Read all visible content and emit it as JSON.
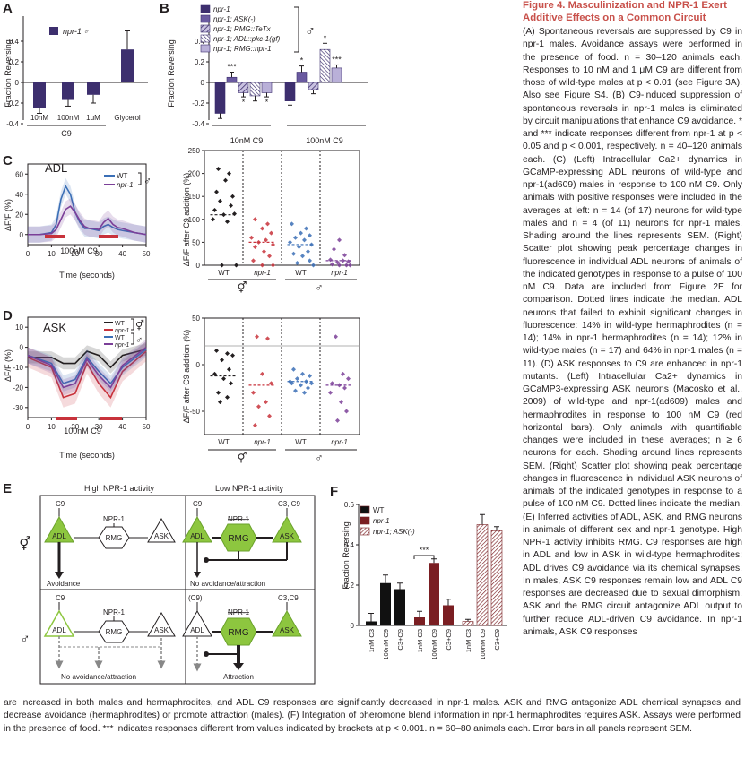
{
  "caption": {
    "title": "Figure 4. Masculinization and NPR-1 Exert Additive Effects on a Common Circuit",
    "side_text": "(A) Spontaneous reversals are suppressed by C9 in npr-1 males. Avoidance assays were performed in the presence of food. n = 30–120 animals each. Responses to 10 nM and 1 μM C9 are different from those of wild-type males at p < 0.01 (see Figure 3A). Also see Figure S4. (B) C9-induced suppression of spontaneous reversals in npr-1 males is eliminated by circuit manipulations that enhance C9 avoidance. * and *** indicate responses different from npr-1 at p < 0.05 and p < 0.001, respectively. n = 40–120 animals each. (C) (Left) Intracellular Ca2+ dynamics in GCaMP-expressing ADL neurons of wild-type and npr-1(ad609) males in response to 100 nM C9. Only animals with positive responses were included in the averages at left: n = 14 (of 17) neurons for wild-type males and n = 4 (of 11) neurons for npr-1 males. Shading around the lines represents SEM. (Right) Scatter plot showing peak percentage changes in fluorescence in individual ADL neurons of animals of the indicated genotypes in response to a pulse of 100 nM C9. Data are included from Figure 2E for comparison. Dotted lines indicate the median. ADL neurons that failed to exhibit significant changes in fluorescence: 14% in wild-type hermaphrodites (n = 14); 14% in npr-1 hermaphrodites (n = 14); 12% in wild-type males (n = 17) and 64% in npr-1 males (n = 11). (D) ASK responses to C9 are enhanced in npr-1 mutants. (Left) Intracellular Ca2+ dynamics in GCaMP3-expressing ASK neurons (Macosko et al., 2009) of wild-type and npr-1(ad609) males and hermaphrodites in response to 100 nM C9 (red horizontal bars). Only animals with quantifiable changes were included in these averages; n ≥ 6 neurons for each. Shading around lines represents SEM. (Right) Scatter plot showing peak percentage changes in fluorescence in individual ASK neurons of animals of the indicated genotypes in response to a pulse of 100 nM C9. Dotted lines indicate the median. (E) Inferred activities of ADL, ASK, and RMG neurons in animals of different sex and npr-1 genotype. High NPR-1 activity inhibits RMG. C9 responses are high in ADL and low in ASK in wild-type hermaphrodites; ADL drives C9 avoidance via its chemical synapses. In males, ASK C9 responses remain low and ADL C9 responses are decreased due to sexual dimorphism. ASK and the RMG circuit antagonize ADL output to further reduce ADL-driven C9 avoidance. In npr-1 animals, ASK C9 responses",
    "bottom_text": "are increased in both males and hermaphrodites, and ADL C9 responses are significantly decreased in npr-1 males. ASK and RMG antagonize ADL chemical synapses and decrease avoidance (hermaphrodites) or promote attraction (males). (F) Integration of pheromone blend information in npr-1 hermaphrodites requires ASK. Assays were performed in the presence of food. *** indicates responses different from values indicated by brackets at p < 0.001. n = 60–80 animals each. Error bars in all panels represent SEM."
  },
  "panels": {
    "A": {
      "label": "A",
      "ylabel": "Fraction Reversing",
      "legend": "npr-1 ♂",
      "yticks": [
        "0.4",
        "0.2",
        "0",
        "-0.2",
        "-0.4"
      ],
      "categories": [
        "10nM",
        "100nM",
        "1μM",
        "Glycerol"
      ],
      "group": "C9"
    },
    "B": {
      "label": "B",
      "ylabel": "Fraction Reversing",
      "legend": [
        "npr-1",
        "npr-1; ASK(-)",
        "npr-1; RMG::TeTx",
        "npr-1; ADL::pkc-1(gf)",
        "npr-1; RMG::npr-1"
      ],
      "sex": "♂",
      "yticks": [
        "0.4",
        "0.2",
        "0",
        "-0.2",
        "-0.4"
      ],
      "groups": [
        "10nM C9",
        "100nM C9"
      ],
      "stars": [
        "***",
        "*",
        "*",
        "*",
        "*",
        "***"
      ]
    },
    "C": {
      "label": "C",
      "neuron": "ADL",
      "ylabel": "ΔF/F (%)",
      "xlabel": "Time (seconds)",
      "stim": "100nM C9",
      "legend": [
        "WT",
        "npr-1"
      ],
      "sex": "♂",
      "yticks": [
        "60",
        "40",
        "20",
        "0"
      ],
      "xticks": [
        "0",
        "10",
        "20",
        "30",
        "40",
        "50"
      ],
      "scatter_ylabel": "ΔF/F after C9 addition (%)",
      "scatter_yticks": [
        "250",
        "200",
        "150",
        "100",
        "50",
        "0"
      ],
      "groups": [
        "WT",
        "npr-1",
        "WT",
        "npr-1"
      ],
      "sexes": [
        "⚥",
        "♂"
      ]
    },
    "D": {
      "label": "D",
      "neuron": "ASK",
      "ylabel": "ΔF/F (%)",
      "xlabel": "Time (seconds)",
      "stim": "100nM C9",
      "legend": [
        "WT",
        "npr-1",
        "WT",
        "npr-1"
      ],
      "sexes_legend": [
        "⚥",
        "♂"
      ],
      "yticks": [
        "10",
        "0",
        "-10",
        "-20",
        "-30"
      ],
      "xticks": [
        "0",
        "10",
        "20",
        "30",
        "40",
        "50"
      ],
      "scatter_ylabel": "ΔF/F after C9 addition (%)",
      "scatter_yticks": [
        "50",
        "0",
        "-50"
      ],
      "groups": [
        "WT",
        "npr-1",
        "WT",
        "npr-1"
      ],
      "sexes": [
        "⚥",
        "♂"
      ]
    },
    "E": {
      "label": "E",
      "col1": "High NPR-1 activity",
      "col2": "Low NPR-1 activity",
      "row1_sex": "⚥",
      "row2_sex": "♂",
      "c9": "C9",
      "c9p": "(C9)",
      "c3c9": "C3, C9",
      "c3c9b": "C3,C9",
      "npr": "NPR-1",
      "adl": "ADL",
      "rmg": "RMG",
      "ask": "ASK",
      "out1": "Avoidance",
      "out2": "No avoidance/attraction",
      "out3": "No avoidance/attraction",
      "out4": "Attraction"
    },
    "F": {
      "label": "F",
      "ylabel": "Fraction Reversing",
      "legend": [
        "WT",
        "npr-1",
        "npr-1; ASK(-)"
      ],
      "yticks": [
        "0.6",
        "0.4",
        "0.2",
        "0"
      ],
      "star": "***",
      "categories": [
        "1nM C3",
        "100nM C9",
        "C3+C9",
        "1nM C3",
        "100nM C9",
        "C3+C9",
        "1nM C3",
        "100nM C9",
        "C3+C9"
      ]
    }
  },
  "chart_data": [
    {
      "type": "bar",
      "panel": "A",
      "title": "",
      "ylabel": "Fraction Reversing",
      "ylim": [
        -0.4,
        0.6
      ],
      "categories": [
        "10nM",
        "100nM",
        "1μM",
        "Glycerol"
      ],
      "series": [
        {
          "name": "npr-1 ♂",
          "values": [
            -0.25,
            -0.17,
            -0.12,
            0.32
          ],
          "errors": [
            0.05,
            0.06,
            0.08,
            0.18
          ]
        }
      ]
    },
    {
      "type": "bar",
      "panel": "B",
      "ylabel": "Fraction Reversing",
      "ylim": [
        -0.4,
        0.6
      ],
      "categories": [
        "10nM C9",
        "100nM C9"
      ],
      "series": [
        {
          "name": "npr-1",
          "values": [
            -0.3,
            -0.18
          ]
        },
        {
          "name": "npr-1; ASK(-)",
          "values": [
            0.05,
            0.1
          ]
        },
        {
          "name": "npr-1; RMG::TeTx",
          "values": [
            -0.1,
            -0.07
          ]
        },
        {
          "name": "npr-1; ADL::pkc-1(gf)",
          "values": [
            -0.13,
            0.32
          ]
        },
        {
          "name": "npr-1; RMG::npr-1",
          "values": [
            -0.1,
            0.14
          ]
        }
      ]
    },
    {
      "type": "line",
      "panel": "C",
      "xlabel": "Time (seconds)",
      "ylabel": "ΔF/F (%)",
      "ylim": [
        -10,
        70
      ],
      "xlim": [
        0,
        50
      ],
      "series": [
        {
          "name": "WT",
          "x": [
            0,
            5,
            10,
            12,
            14,
            16,
            18,
            20,
            22,
            24,
            26,
            28,
            30,
            32,
            34,
            36,
            38,
            40,
            45,
            50
          ],
          "y": [
            0,
            0,
            2,
            10,
            35,
            48,
            40,
            22,
            12,
            6,
            6,
            5,
            4,
            8,
            10,
            7,
            5,
            4,
            2,
            0
          ]
        },
        {
          "name": "npr-1",
          "x": [
            0,
            5,
            10,
            12,
            14,
            16,
            18,
            20,
            22,
            24,
            26,
            28,
            30,
            32,
            34,
            36,
            38,
            40,
            45,
            50
          ],
          "y": [
            0,
            0,
            1,
            5,
            15,
            25,
            28,
            22,
            14,
            8,
            6,
            6,
            5,
            12,
            16,
            10,
            7,
            6,
            2,
            0
          ]
        }
      ]
    },
    {
      "type": "scatter",
      "panel": "C-right",
      "ylabel": "ΔF/F after C9 addition (%)",
      "ylim": [
        0,
        250
      ],
      "categories": [
        "WT ⚥",
        "npr-1 ⚥",
        "WT ♂",
        "npr-1 ♂"
      ],
      "medians": [
        110,
        50,
        45,
        10
      ]
    },
    {
      "type": "line",
      "panel": "D",
      "xlabel": "Time (seconds)",
      "ylabel": "ΔF/F (%)",
      "ylim": [
        -35,
        15
      ],
      "xlim": [
        0,
        50
      ],
      "series": [
        {
          "name": "WT ⚥",
          "x": [
            0,
            10,
            15,
            20,
            25,
            30,
            35,
            40,
            50
          ],
          "y": [
            -5,
            -5,
            -8,
            -8,
            -2,
            -4,
            -10,
            -4,
            -1
          ]
        },
        {
          "name": "npr-1 ⚥",
          "x": [
            0,
            10,
            15,
            20,
            25,
            30,
            35,
            40,
            50
          ],
          "y": [
            -5,
            -10,
            -25,
            -23,
            -8,
            -18,
            -25,
            -12,
            -2
          ]
        },
        {
          "name": "WT ♂",
          "x": [
            0,
            10,
            15,
            20,
            25,
            30,
            35,
            40,
            50
          ],
          "y": [
            -4,
            -8,
            -18,
            -16,
            -5,
            -12,
            -18,
            -10,
            -1
          ]
        },
        {
          "name": "npr-1 ♂",
          "x": [
            0,
            10,
            15,
            20,
            25,
            30,
            35,
            40,
            50
          ],
          "y": [
            -4,
            -9,
            -20,
            -18,
            -6,
            -14,
            -20,
            -9,
            0
          ]
        }
      ]
    },
    {
      "type": "scatter",
      "panel": "D-right",
      "ylabel": "ΔF/F after C9 addition (%)",
      "ylim": [
        -75,
        50
      ],
      "categories": [
        "WT ⚥",
        "npr-1 ⚥",
        "WT ♂",
        "npr-1 ♂"
      ],
      "medians": [
        -12,
        -22,
        -18,
        -22
      ]
    },
    {
      "type": "bar",
      "panel": "F",
      "ylabel": "Fraction Reversing",
      "ylim": [
        0,
        0.6
      ],
      "categories": [
        "1nM C3",
        "100nM C9",
        "C3+C9"
      ],
      "series": [
        {
          "name": "WT",
          "values": [
            0.02,
            0.21,
            0.18
          ]
        },
        {
          "name": "npr-1",
          "values": [
            0.04,
            0.31,
            0.1
          ]
        },
        {
          "name": "npr-1; ASK(-)",
          "values": [
            0.02,
            0.5,
            0.47
          ]
        }
      ]
    }
  ],
  "colors": {
    "bar": "#3d2f6e",
    "npr1_line": "#7b3f98",
    "wt_line": "#3b6fb6",
    "red": "#c8323b",
    "green": "#8dc63f",
    "darkred": "#7a1e22",
    "caption_title": "#c8504a"
  }
}
